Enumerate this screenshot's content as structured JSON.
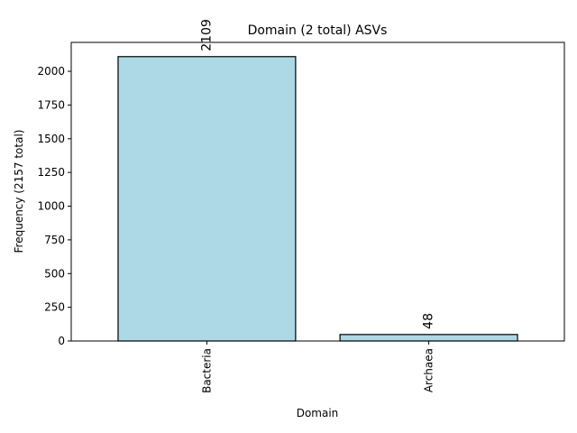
{
  "chart_data": {
    "type": "bar",
    "title": "Domain (2 total) ASVs",
    "xlabel": "Domain",
    "ylabel": "Frequency (2157 total)",
    "categories": [
      "Bacteria",
      "Archaea"
    ],
    "values": [
      2109,
      48
    ],
    "data_labels": [
      "2109",
      "48"
    ],
    "ylim": [
      0,
      2214.5
    ],
    "yticks": [
      0,
      250,
      500,
      750,
      1000,
      1250,
      1500,
      1750,
      2000
    ],
    "ytick_labels": [
      "0",
      "250",
      "500",
      "750",
      "1000",
      "1250",
      "1500",
      "1750",
      "2000"
    ],
    "grid": false,
    "legend": "none",
    "colors": {
      "bar_fill": "#add8e6",
      "bar_edge": "#000000"
    }
  }
}
